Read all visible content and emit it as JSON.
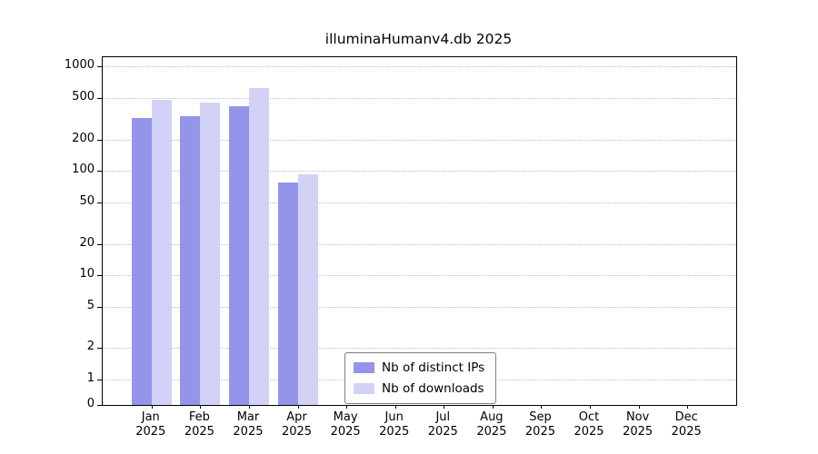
{
  "chart_data": {
    "type": "bar",
    "title": "illuminaHumanv4.db 2025",
    "categories": [
      "Jan",
      "Feb",
      "Mar",
      "Apr",
      "May",
      "Jun",
      "Jul",
      "Aug",
      "Sep",
      "Oct",
      "Nov",
      "Dec"
    ],
    "year": "2025",
    "series": [
      {
        "name": "Nb of distinct IPs",
        "color": "#9494ea",
        "values": [
          320,
          335,
          420,
          78,
          0,
          0,
          0,
          0,
          0,
          0,
          0,
          0
        ]
      },
      {
        "name": "Nb of downloads",
        "color": "#d2d2f6",
        "values": [
          480,
          450,
          620,
          92,
          0,
          0,
          0,
          0,
          0,
          0,
          0,
          0
        ]
      }
    ],
    "yticks": [
      0,
      1,
      2,
      5,
      10,
      20,
      50,
      100,
      200,
      500,
      1000
    ],
    "xlabel": "",
    "ylabel": "",
    "scale": "log",
    "grid": "dotted-horizontal",
    "legend_position": "inside-bottom-center"
  }
}
